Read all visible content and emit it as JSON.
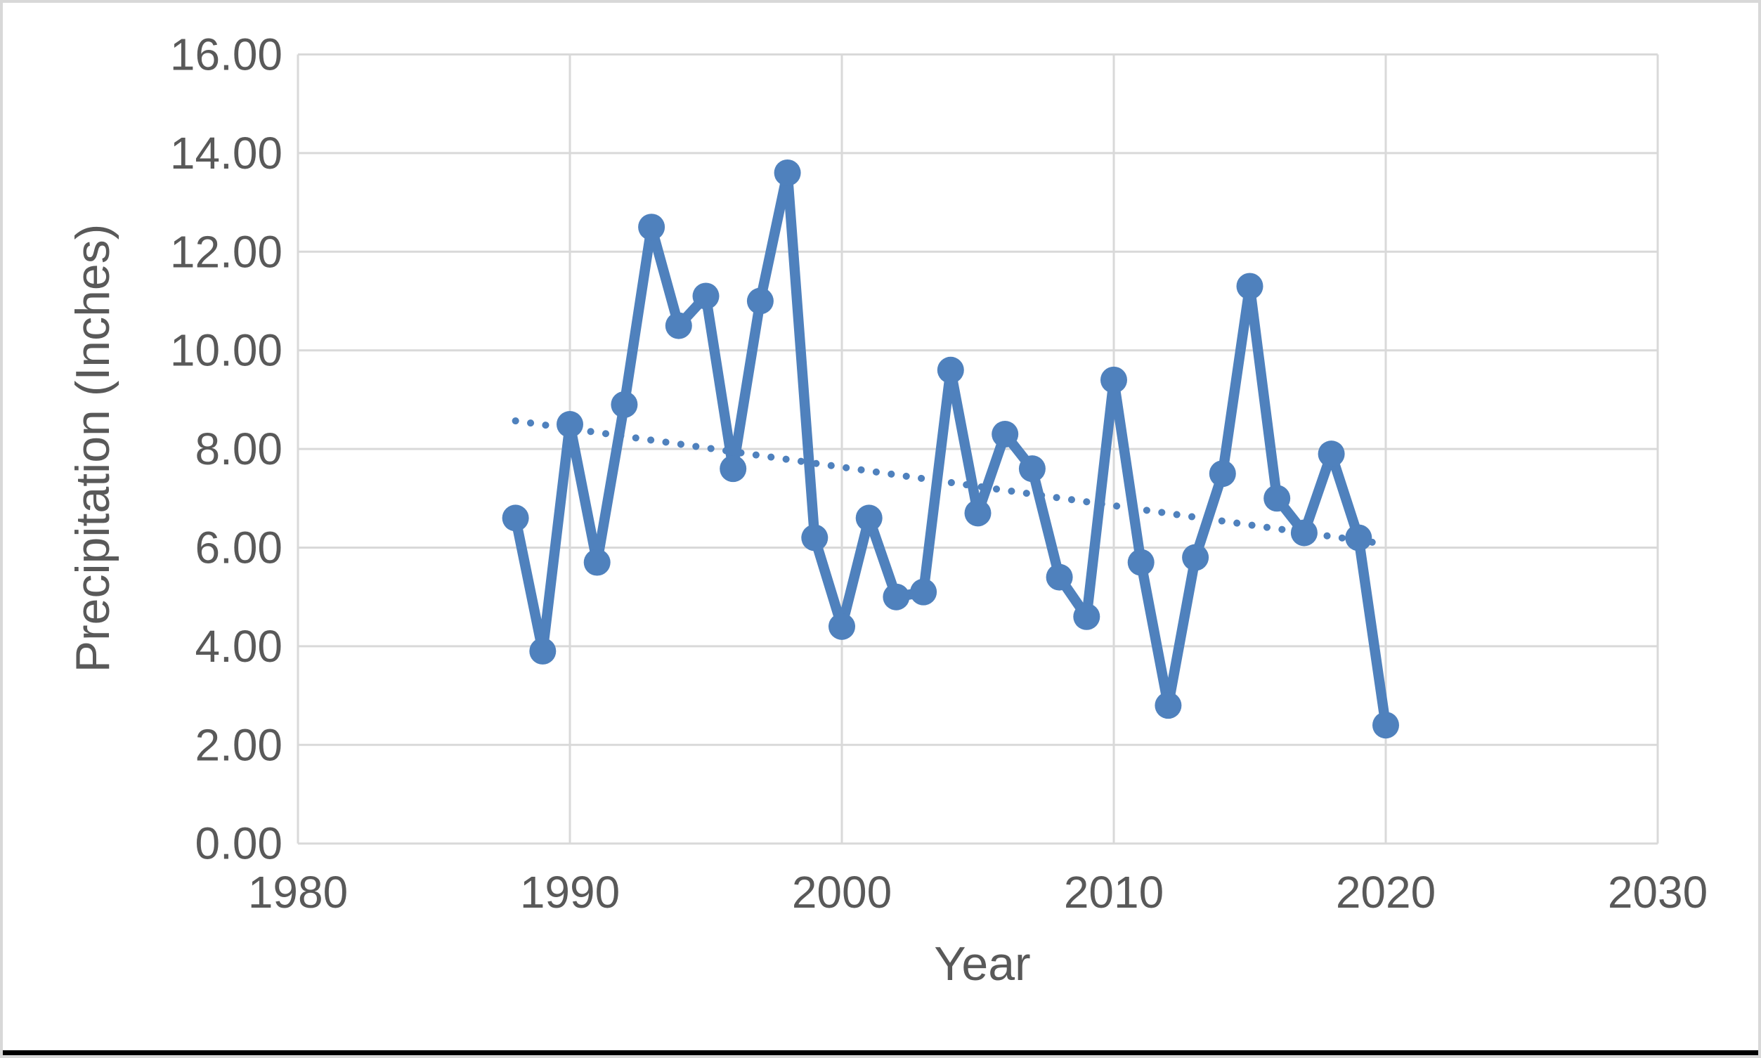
{
  "figure": {
    "background": "#ffffff",
    "frame_border_color": "#d8d8d8",
    "bottom_edge_color": "#000000"
  },
  "chart_data": {
    "type": "line",
    "title": "",
    "xlabel": "Year",
    "ylabel": "Precipitation (Inches)",
    "xlim": [
      1980,
      2030
    ],
    "ylim": [
      0,
      16
    ],
    "x_ticks": [
      "1980",
      "1990",
      "2000",
      "2010",
      "2020",
      "2030"
    ],
    "y_ticks": [
      "0.00",
      "2.00",
      "4.00",
      "6.00",
      "8.00",
      "10.00",
      "12.00",
      "14.00",
      "16.00"
    ],
    "grid": "both-light-gray",
    "legend": "none",
    "x": [
      1988,
      1989,
      1990,
      1991,
      1992,
      1993,
      1994,
      1995,
      1996,
      1997,
      1998,
      1999,
      2000,
      2001,
      2002,
      2003,
      2004,
      2005,
      2006,
      2007,
      2008,
      2009,
      2010,
      2011,
      2012,
      2013,
      2014,
      2015,
      2016,
      2017,
      2018,
      2019,
      2020
    ],
    "series": [
      {
        "name": "annual-precipitation",
        "style": "solid-line-with-round-markers",
        "color": "#4F81BD",
        "values": [
          6.6,
          3.9,
          8.5,
          5.7,
          8.9,
          12.5,
          10.5,
          11.1,
          7.6,
          11.0,
          13.6,
          6.2,
          4.4,
          6.6,
          5.0,
          5.1,
          9.6,
          6.7,
          8.3,
          7.6,
          5.4,
          4.6,
          9.4,
          5.7,
          2.8,
          5.8,
          7.5,
          11.3,
          7.0,
          6.3,
          7.9,
          6.2,
          2.4
        ]
      },
      {
        "name": "linear-trendline",
        "style": "dotted-line",
        "color": "#4F81BD",
        "x": [
          1988,
          2020
        ],
        "values": [
          8.57,
          6.07
        ]
      }
    ],
    "colors": {
      "series_blue": "#4F81BD",
      "gridline_gray": "#d9d9d9",
      "tick_text_gray": "#595959"
    }
  }
}
